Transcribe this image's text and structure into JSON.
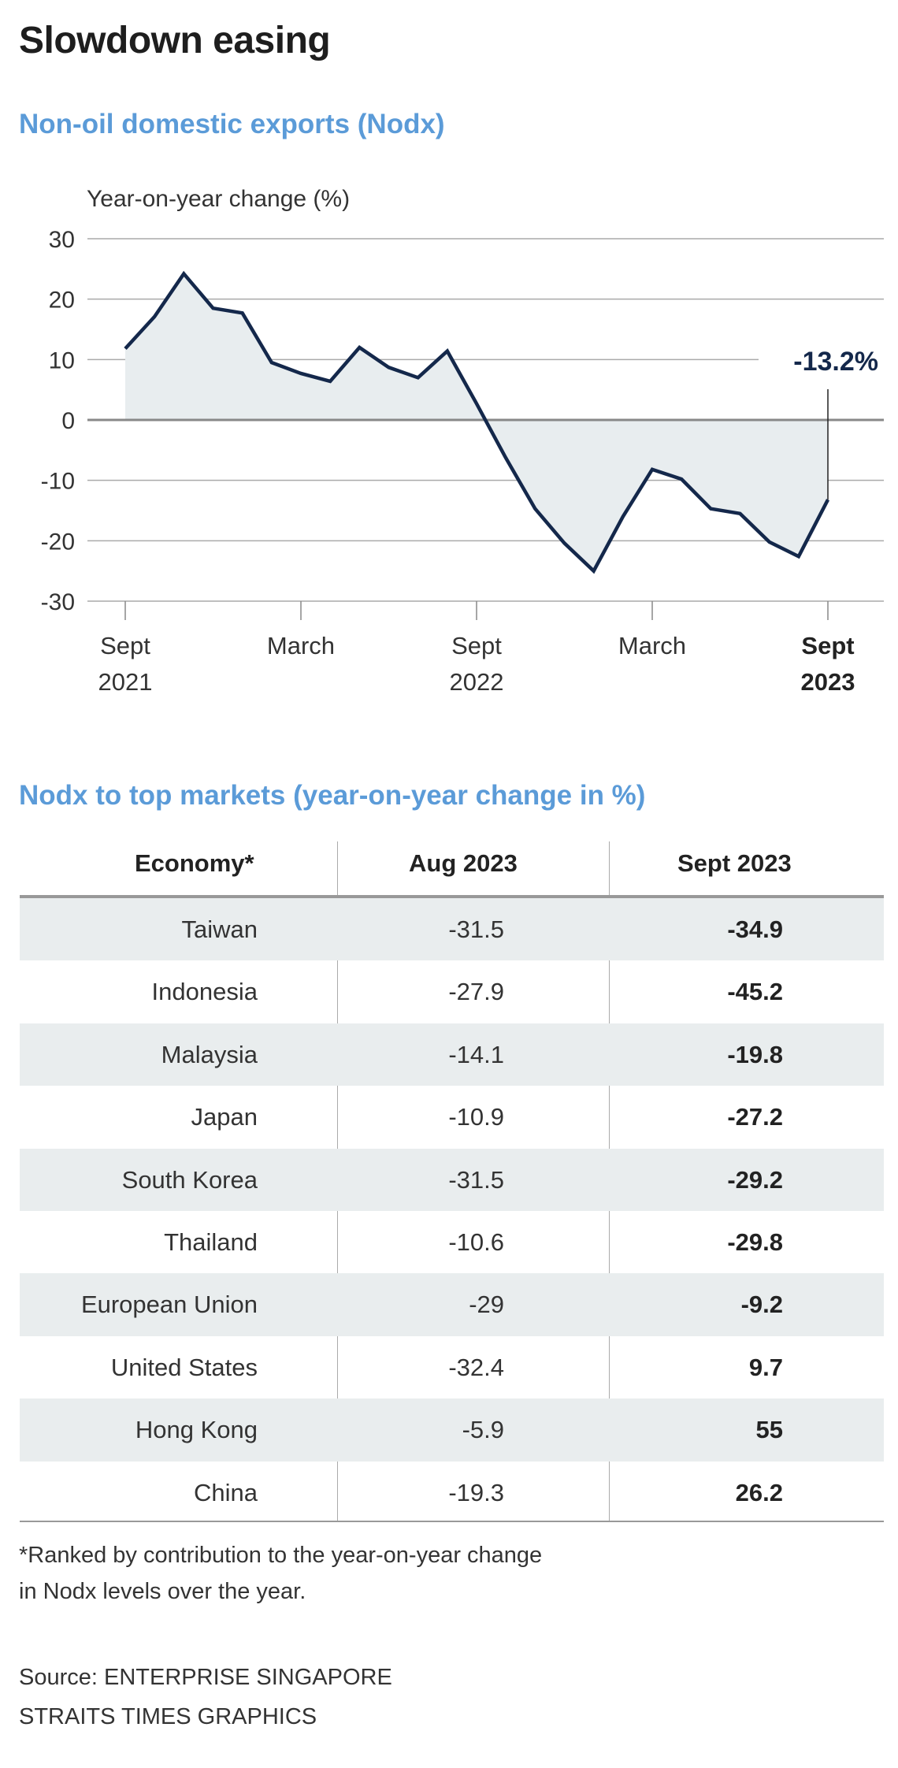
{
  "title": "Slowdown easing",
  "subtitle": "Non-oil domestic exports (Nodx)",
  "chart_data": {
    "type": "area",
    "title": "Non-oil domestic exports (Nodx)",
    "ylabel": "Year-on-year change (%)",
    "xlabel": "",
    "ylim": [
      -30,
      30
    ],
    "yticks": [
      30,
      20,
      10,
      0,
      -10,
      -20,
      -30
    ],
    "grid": true,
    "x": [
      "2021-09",
      "2021-10",
      "2021-11",
      "2021-12",
      "2022-01",
      "2022-02",
      "2022-03",
      "2022-04",
      "2022-05",
      "2022-06",
      "2022-07",
      "2022-08",
      "2022-09",
      "2022-10",
      "2022-11",
      "2022-12",
      "2023-01",
      "2023-02",
      "2023-03",
      "2023-04",
      "2023-05",
      "2023-06",
      "2023-07",
      "2023-08",
      "2023-09"
    ],
    "values": [
      11.8,
      17.1,
      24.2,
      18.5,
      17.7,
      9.5,
      7.7,
      6.4,
      12.0,
      8.7,
      7.0,
      11.4,
      2.7,
      -6.3,
      -14.7,
      -20.4,
      -25.0,
      -16.0,
      -8.2,
      -9.8,
      -14.7,
      -15.5,
      -20.2,
      -22.6,
      -13.2
    ],
    "xticks": [
      {
        "index": 0,
        "line1": "Sept",
        "line2": "2021",
        "bold": false
      },
      {
        "index": 6,
        "line1": "March",
        "line2": "",
        "bold": false
      },
      {
        "index": 12,
        "line1": "Sept",
        "line2": "2022",
        "bold": false
      },
      {
        "index": 18,
        "line1": "March",
        "line2": "",
        "bold": false
      },
      {
        "index": 24,
        "line1": "Sept",
        "line2": "2023",
        "bold": true
      }
    ],
    "annotation": {
      "index": 24,
      "text": "-13.2%"
    },
    "colors": {
      "line": "#14284b",
      "fill": "#e8edef",
      "grid": "#aaaaaa"
    }
  },
  "table": {
    "title": "Nodx to top markets (year-on-year change in %)",
    "headers": [
      "Economy*",
      "Aug 2023",
      "Sept 2023"
    ],
    "rows": [
      {
        "economy": "Taiwan",
        "aug": "-31.5",
        "sept": "-34.9"
      },
      {
        "economy": "Indonesia",
        "aug": "-27.9",
        "sept": "-45.2"
      },
      {
        "economy": "Malaysia",
        "aug": "-14.1",
        "sept": "-19.8"
      },
      {
        "economy": "Japan",
        "aug": "-10.9",
        "sept": "-27.2"
      },
      {
        "economy": "South Korea",
        "aug": "-31.5",
        "sept": "-29.2"
      },
      {
        "economy": "Thailand",
        "aug": "-10.6",
        "sept": "-29.8"
      },
      {
        "economy": "European Union",
        "aug": "-29",
        "sept": "-9.2"
      },
      {
        "economy": "United States",
        "aug": "-32.4",
        "sept": "9.7"
      },
      {
        "economy": "Hong Kong",
        "aug": "-5.9",
        "sept": "55"
      },
      {
        "economy": "China",
        "aug": "-19.3",
        "sept": "26.2"
      }
    ]
  },
  "footnote": [
    "*Ranked by contribution to the year-on-year change",
    "in Nodx levels over the year."
  ],
  "source": [
    "Source: ENTERPRISE SINGAPORE",
    "STRAITS TIMES GRAPHICS"
  ]
}
